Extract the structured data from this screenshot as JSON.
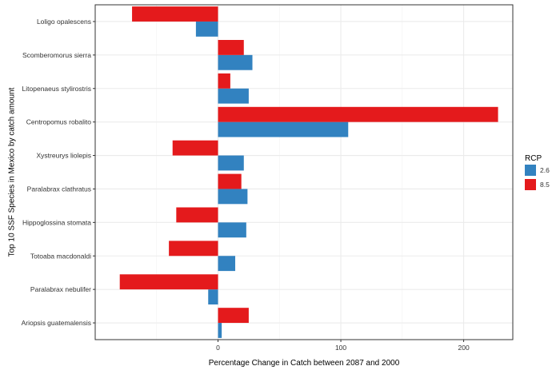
{
  "chart_data": {
    "type": "bar",
    "orientation": "horizontal",
    "title": "",
    "xlabel": "Percentage Change in Catch between 2087 and 2000",
    "ylabel": "Top 10 SSF  Species in Mexico by catch amount",
    "xlim": [
      -100,
      240
    ],
    "x_ticks": [
      0,
      100,
      200
    ],
    "grid": true,
    "legend": {
      "title": "RCP",
      "position": "right"
    },
    "categories": [
      "Loligo opalescens",
      "Scomberomorus sierra",
      "Litopenaeus stylirostris",
      "Centropomus robalito",
      "Xystreurys liolepis",
      "Paralabrax clathratus",
      "Hippoglossina stomata",
      "Totoaba macdonaldi",
      "Paralabrax nebulifer",
      "Ariopsis guatemalensis"
    ],
    "series": [
      {
        "name": "2.6",
        "color": "#3282c0",
        "values": [
          -18,
          28,
          25,
          106,
          21,
          24,
          23,
          14,
          -8,
          3
        ]
      },
      {
        "name": "8.5",
        "color": "#e41a1c",
        "values": [
          -70,
          21,
          10,
          228,
          -37,
          19,
          -34,
          -40,
          -80,
          25
        ]
      }
    ]
  }
}
